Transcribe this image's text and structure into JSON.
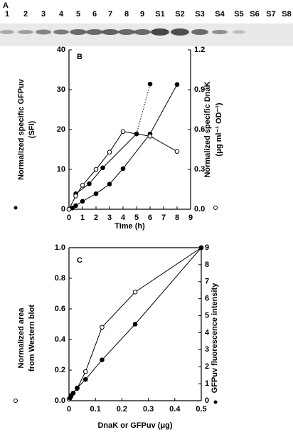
{
  "panel_a": {
    "label": "A",
    "lanes": [
      "1",
      "2",
      "3",
      "4",
      "5",
      "6",
      "7",
      "8",
      "9",
      "S1",
      "S2",
      "S3",
      "S4",
      "S5",
      "S6",
      "S7",
      "S8"
    ]
  },
  "chart_data": [
    {
      "type": "line",
      "panel_label": "B",
      "box": false,
      "xlabel": "Time (h)",
      "ylabel": [
        "Normalized specific GFPuv",
        "(SFI)"
      ],
      "y2label": [
        "Normalized specific DnaK",
        "(μg ml⁻¹ OD⁻¹)"
      ],
      "xlim": [
        0,
        9
      ],
      "xticks": [
        0,
        1,
        2,
        3,
        4,
        5,
        6,
        7,
        8,
        9
      ],
      "ylim": [
        0,
        40
      ],
      "yticks": [
        0,
        10,
        20,
        30,
        40
      ],
      "y2lim": [
        0,
        1.2
      ],
      "y2ticks": [
        {
          "value": 0,
          "label": "0.0"
        },
        0.3,
        0.6,
        0.9,
        1.2
      ],
      "series": [
        {
          "marker": "filled",
          "color": "#000",
          "x": [
            0,
            0.25,
            0.5,
            1,
            2,
            3,
            4,
            6,
            8
          ],
          "values": [
            0,
            0.3,
            0.9,
            2.0,
            3.9,
            6.3,
            10.2,
            18.9,
            31.3
          ]
        },
        {
          "marker": "filled",
          "color": "#000",
          "dashed_last_segment": true,
          "x": [
            0.5,
            1.5,
            2.5,
            5,
            6
          ],
          "values": [
            3.9,
            6.4,
            10.4,
            18.9,
            31.4
          ]
        },
        {
          "marker": "open",
          "color": "#000",
          "axis": "y2",
          "x": [
            0,
            0.5,
            1,
            2,
            3,
            4,
            6,
            8
          ],
          "values": [
            0,
            0.1,
            0.18,
            0.3,
            0.43,
            0.585,
            0.55,
            0.435
          ]
        }
      ]
    },
    {
      "type": "line",
      "panel_label": "C",
      "box": true,
      "xlabel": "DnaK or GFPuv (μg)",
      "ylabel": [
        "Normalized area",
        "from Western blot"
      ],
      "y2label": [
        "GFPuv fluorescence intensity"
      ],
      "xlim": [
        0,
        0.5
      ],
      "xticks": [
        0,
        0.1,
        0.2,
        0.3,
        0.4,
        0.5
      ],
      "ylim": [
        0,
        1
      ],
      "yticks": [
        {
          "value": 0,
          "label": "0.0"
        },
        0.2,
        0.4,
        0.6,
        0.8,
        {
          "value": 1,
          "label": "1.0"
        }
      ],
      "y2lim": [
        0,
        9
      ],
      "y2ticks": [
        0,
        1,
        2,
        3,
        4,
        5,
        6,
        7,
        8,
        9
      ],
      "series": [
        {
          "marker": "open",
          "color": "#000",
          "x": [
            0,
            0.008,
            0.016,
            0.031,
            0.0625,
            0.125,
            0.25,
            0.5
          ],
          "values": [
            0.01,
            0.03,
            0.05,
            0.08,
            0.19,
            0.48,
            0.71,
            1.0
          ]
        },
        {
          "marker": "filled",
          "color": "#000",
          "axis": "y2",
          "x": [
            0.004,
            0.008,
            0.016,
            0.031,
            0.0625,
            0.125,
            0.25,
            0.5
          ],
          "values": [
            0.15,
            0.3,
            0.45,
            0.75,
            1.25,
            2.4,
            4.5,
            9
          ]
        }
      ]
    }
  ]
}
